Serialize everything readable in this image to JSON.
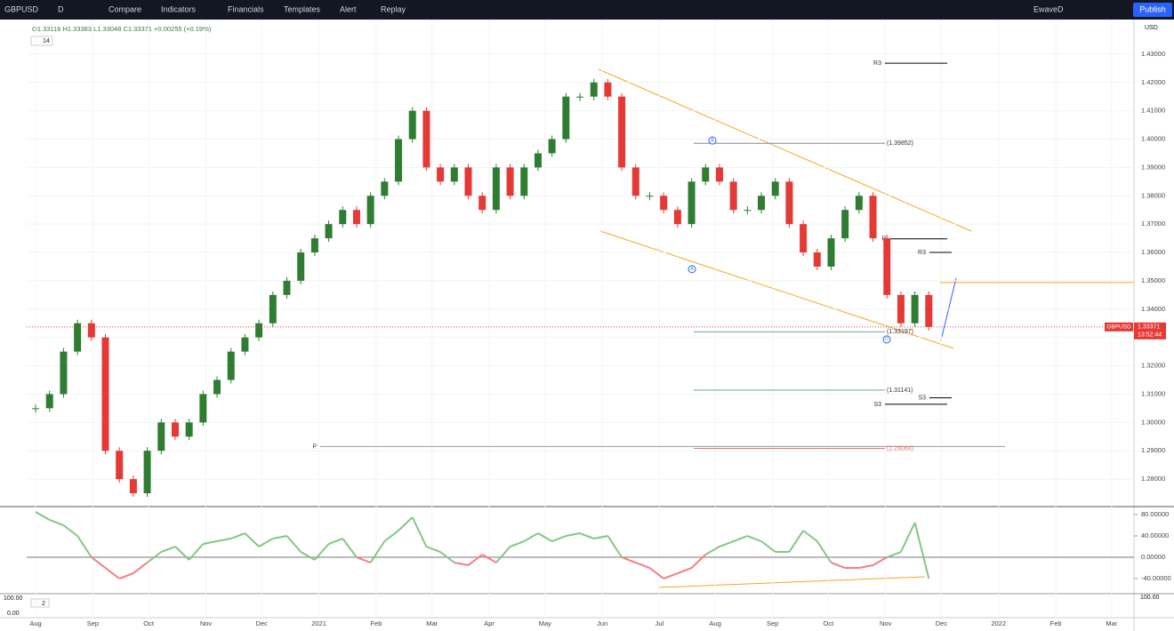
{
  "toolbar": {
    "symbol": "GBPUSD",
    "interval": "D",
    "buttons": [
      "Compare",
      "Indicators",
      "Financials",
      "Templates",
      "Alert",
      "Replay"
    ],
    "account": "EwaveD",
    "publish": "Publish"
  },
  "legend": {
    "ohlc": "O1.33116 H1.33383 L1.33048 C1.33371 +0.00255 (+0.19%)",
    "indicator_count": "14"
  },
  "chart_data": {
    "type": "candlestick",
    "series_name": "GBPUSD",
    "currency": "USD",
    "last": 1.33371,
    "countdown": "13:52:44",
    "up_color": "#2e7d32",
    "down_color": "#e53935",
    "closes": [
      1.305,
      1.31,
      1.325,
      1.335,
      1.33,
      1.29,
      1.28,
      1.275,
      1.29,
      1.3,
      1.295,
      1.3,
      1.31,
      1.315,
      1.325,
      1.33,
      1.335,
      1.345,
      1.35,
      1.36,
      1.365,
      1.37,
      1.375,
      1.37,
      1.38,
      1.385,
      1.4,
      1.41,
      1.39,
      1.385,
      1.39,
      1.38,
      1.375,
      1.39,
      1.38,
      1.39,
      1.395,
      1.4,
      1.415,
      1.415,
      1.42,
      1.415,
      1.39,
      1.38,
      1.38,
      1.375,
      1.37,
      1.385,
      1.39,
      1.385,
      1.375,
      1.375,
      1.38,
      1.385,
      1.37,
      1.36,
      1.355,
      1.365,
      1.375,
      1.38,
      1.365,
      1.345,
      1.335,
      1.345,
      1.33371
    ],
    "ylim": [
      1.2703,
      1.4422
    ],
    "yticks": [
      {
        "value": 1.28,
        "label": "1.28000"
      },
      {
        "value": 1.29,
        "label": "1.29000"
      },
      {
        "value": 1.3,
        "label": "1.30000"
      },
      {
        "value": 1.31,
        "label": "1.31000"
      },
      {
        "value": 1.32,
        "label": "1.32000"
      },
      {
        "value": 1.33,
        "label": "1.33000"
      },
      {
        "value": 1.34,
        "label": "1.34000"
      },
      {
        "value": 1.35,
        "label": "1.35000"
      },
      {
        "value": 1.36,
        "label": "1.36000"
      },
      {
        "value": 1.37,
        "label": "1.37000"
      },
      {
        "value": 1.38,
        "label": "1.38000"
      },
      {
        "value": 1.39,
        "label": "1.39000"
      },
      {
        "value": 1.4,
        "label": "1.40000"
      },
      {
        "value": 1.41,
        "label": "1.41000"
      },
      {
        "value": 1.42,
        "label": "1.42000"
      },
      {
        "value": 1.43,
        "label": "1.43000"
      }
    ],
    "xlim": [
      -0.64,
      78.7
    ],
    "xticks": [
      {
        "value": 0,
        "label": "Aug"
      },
      {
        "value": 4.1,
        "label": "Sep"
      },
      {
        "value": 8.1,
        "label": "Oct"
      },
      {
        "value": 12.2,
        "label": "Nov"
      },
      {
        "value": 16.2,
        "label": "Dec"
      },
      {
        "value": 20.3,
        "label": "2021"
      },
      {
        "value": 24.4,
        "label": "Feb"
      },
      {
        "value": 28.4,
        "label": "Mar"
      },
      {
        "value": 32.5,
        "label": "Apr"
      },
      {
        "value": 36.5,
        "label": "May"
      },
      {
        "value": 40.6,
        "label": "Jun"
      },
      {
        "value": 44.7,
        "label": "Jul"
      },
      {
        "value": 48.7,
        "label": "Aug"
      },
      {
        "value": 52.8,
        "label": "Sep"
      },
      {
        "value": 56.8,
        "label": "Oct"
      },
      {
        "value": 60.9,
        "label": "Nov"
      },
      {
        "value": 64.9,
        "label": "Dec"
      },
      {
        "value": 69,
        "label": "2022"
      },
      {
        "value": 73.1,
        "label": "Feb"
      },
      {
        "value": 77.1,
        "label": "Mar"
      }
    ],
    "levels": [
      {
        "label": "R3",
        "value": 1.4268
      },
      {
        "label": "(1.39852)",
        "value": 1.39852
      },
      {
        "label": "P",
        "value": 1.3648
      },
      {
        "label": "R3",
        "value": 1.36
      },
      {
        "label": "(1.33197)",
        "value": 1.33197
      },
      {
        "label": "(1.31141)",
        "value": 1.31141
      },
      {
        "label": "S3",
        "value": 1.3087
      },
      {
        "label": "S3",
        "value": 1.3064
      },
      {
        "label": "P",
        "value": 1.2915
      },
      {
        "label": "(1.29084)",
        "value": 1.29084
      }
    ],
    "waves": [
      {
        "label": "A",
        "value": 1.3541
      },
      {
        "label": "B",
        "value": 1.3995
      },
      {
        "label": "C",
        "value": 1.3293
      }
    ]
  },
  "oscillator": {
    "type": "line",
    "up_color": "#81c784",
    "down_color": "#f77c80",
    "values": [
      85,
      70,
      60,
      40,
      0,
      -20,
      -40,
      -30,
      -10,
      10,
      20,
      -5,
      25,
      30,
      35,
      45,
      20,
      35,
      40,
      10,
      -5,
      25,
      35,
      0,
      -10,
      30,
      50,
      75,
      20,
      10,
      -10,
      -15,
      5,
      -10,
      20,
      30,
      45,
      30,
      40,
      45,
      35,
      40,
      0,
      -10,
      -20,
      -40,
      -30,
      -20,
      5,
      20,
      30,
      40,
      30,
      10,
      10,
      50,
      30,
      -10,
      -20,
      -20,
      -15,
      0,
      10,
      65,
      -40
    ],
    "ylim": [
      -68.3,
      95
    ],
    "yticks": [
      {
        "value": -40,
        "label": "-40.00000"
      },
      {
        "value": 0,
        "label": "0.00000"
      },
      {
        "value": 40,
        "label": "40.00000"
      },
      {
        "value": 80,
        "label": "80.00000"
      }
    ]
  },
  "lower_pane": {
    "label": "2",
    "scale_top": "100.00",
    "left_top": "100.00",
    "left_bottom": "0.00"
  }
}
